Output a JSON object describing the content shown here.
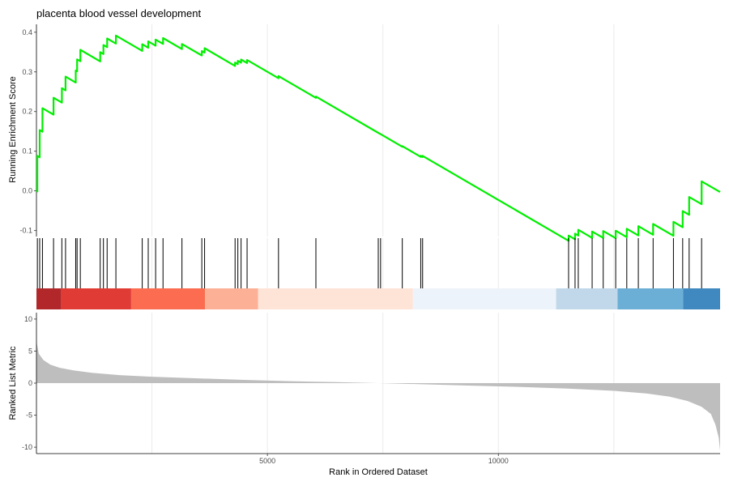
{
  "chart_data": {
    "type": "line",
    "title": "placenta blood vessel development",
    "xlabel": "Rank in Ordered Dataset",
    "xlim": [
      0,
      14800
    ],
    "x_ticks": [
      5000,
      10000
    ],
    "x_tick_labels": [
      "5000",
      "10000"
    ],
    "grid": true,
    "panels": {
      "enrichment": {
        "ylabel": "Running Enrichment Score",
        "ylim": [
          -0.115,
          0.42
        ],
        "y_ticks": [
          -0.1,
          0.0,
          0.1,
          0.2,
          0.3,
          0.4
        ],
        "y_tick_labels": [
          "-0.1",
          "0.0",
          "0.1",
          "0.2",
          "0.3",
          "0.4"
        ],
        "line_color": "#00ee00",
        "hits": [
          20,
          70,
          130,
          370,
          550,
          630,
          850,
          880,
          950,
          1380,
          1450,
          1530,
          1720,
          2290,
          2420,
          2580,
          2740,
          3150,
          3580,
          3640,
          4300,
          4360,
          4430,
          4560,
          5240,
          6050,
          7400,
          7450,
          7920,
          8320,
          8360,
          11520,
          11660,
          11730,
          12030,
          12270,
          12540,
          12780,
          13030,
          13350,
          13790,
          13990,
          14130,
          14400
        ],
        "start_value": 0.0,
        "end_value": 0.0
      },
      "ranked": {
        "ylabel": "Ranked List Metric",
        "ylim": [
          -11,
          11
        ],
        "y_ticks": [
          -10,
          -5,
          0,
          5,
          10
        ],
        "y_tick_labels": [
          "-10",
          "-5",
          "0",
          "5",
          "10"
        ],
        "fill_color": "#bebebe",
        "samples": [
          [
            0,
            6.5
          ],
          [
            50,
            4.6
          ],
          [
            150,
            3.6
          ],
          [
            300,
            2.9
          ],
          [
            500,
            2.4
          ],
          [
            800,
            2.0
          ],
          [
            1200,
            1.6
          ],
          [
            1800,
            1.25
          ],
          [
            2500,
            1.0
          ],
          [
            3500,
            0.75
          ],
          [
            4500,
            0.5
          ],
          [
            5500,
            0.3
          ],
          [
            6500,
            0.15
          ],
          [
            7400,
            0.0
          ],
          [
            8500,
            -0.2
          ],
          [
            9500,
            -0.4
          ],
          [
            10500,
            -0.6
          ],
          [
            11500,
            -0.85
          ],
          [
            12500,
            -1.2
          ],
          [
            13200,
            -1.6
          ],
          [
            13700,
            -2.1
          ],
          [
            14100,
            -2.8
          ],
          [
            14400,
            -3.7
          ],
          [
            14600,
            -4.8
          ],
          [
            14700,
            -6.5
          ],
          [
            14770,
            -8.5
          ],
          [
            14800,
            -10.5
          ]
        ]
      },
      "color_bar": [
        {
          "from": 0,
          "to": 540,
          "color": "#b2282a"
        },
        {
          "from": 540,
          "to": 2050,
          "color": "#e03c35"
        },
        {
          "from": 2050,
          "to": 3650,
          "color": "#fb6c50"
        },
        {
          "from": 3650,
          "to": 4800,
          "color": "#fcb196"
        },
        {
          "from": 4800,
          "to": 8150,
          "color": "#fee3d7"
        },
        {
          "from": 8150,
          "to": 11250,
          "color": "#edf3fb"
        },
        {
          "from": 11250,
          "to": 12580,
          "color": "#c0d8e9"
        },
        {
          "from": 12580,
          "to": 14000,
          "color": "#6baed6"
        },
        {
          "from": 14000,
          "to": 14800,
          "color": "#3f89c0"
        }
      ]
    }
  }
}
